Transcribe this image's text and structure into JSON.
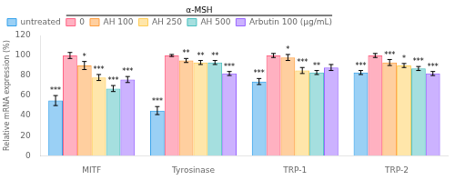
{
  "chart_data": {
    "type": "bar",
    "categories": [
      "MITF",
      "Tyrosinase",
      "TRP-1",
      "TRP-2"
    ],
    "series": [
      {
        "name": "untreated",
        "values": [
          55,
          45,
          74,
          83
        ],
        "errors": [
          5,
          4,
          3,
          2
        ],
        "significance": [
          "***",
          "***",
          "***",
          "***"
        ]
      },
      {
        "name": "0",
        "values": [
          100,
          100,
          100,
          100
        ],
        "errors": [
          3,
          1,
          2,
          2
        ]
      },
      {
        "name": "AH 100",
        "values": [
          90,
          95,
          98,
          93
        ],
        "errors": [
          4,
          2,
          3,
          3
        ],
        "significance": [
          "*",
          "**",
          "*",
          "***"
        ]
      },
      {
        "name": "AH 250",
        "values": [
          78,
          93,
          85,
          90
        ],
        "errors": [
          3,
          2,
          3,
          2
        ],
        "significance": [
          "***",
          "**",
          "***",
          "*"
        ]
      },
      {
        "name": "AH 500",
        "values": [
          67,
          93,
          83,
          87
        ],
        "errors": [
          3,
          2,
          2,
          2
        ],
        "significance": [
          "***",
          "**",
          "**",
          "***"
        ]
      },
      {
        "name": "Arbutin 100 (μg/mL)",
        "values": [
          76,
          82,
          88,
          82
        ],
        "errors": [
          3,
          2,
          3,
          2
        ],
        "significance": [
          "***",
          "***",
          null,
          "***"
        ]
      }
    ],
    "ylabel": "Relative mRNA expression (%)",
    "ylim": [
      0,
      120
    ],
    "yticks": [
      0,
      20,
      40,
      60,
      80,
      100,
      120
    ],
    "grid": false,
    "legend": "top",
    "annotations": [
      {
        "text": "α-MSH",
        "series": [
          "0",
          "AH 100",
          "AH 250",
          "AH 500",
          "Arbutin 100 (μg/mL)"
        ]
      }
    ]
  }
}
